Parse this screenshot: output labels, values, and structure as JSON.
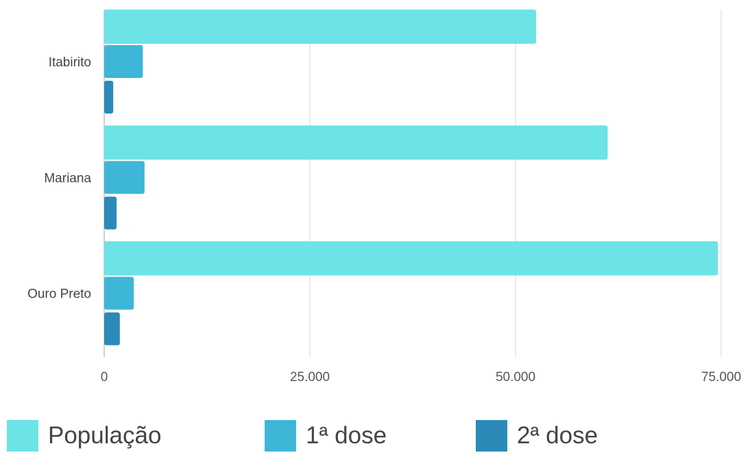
{
  "chart_data": {
    "type": "bar",
    "orientation": "horizontal",
    "categories": [
      "Itabirito",
      "Mariana",
      "Ouro Preto"
    ],
    "series": [
      {
        "name": "População",
        "color": "#6ce3e6",
        "values": [
          52500,
          61200,
          74600
        ]
      },
      {
        "name": "1ª dose",
        "color": "#3eb6d8",
        "values": [
          4700,
          4900,
          3600
        ]
      },
      {
        "name": "2ª dose",
        "color": "#2b8ab8",
        "values": [
          1100,
          1500,
          1900
        ]
      }
    ],
    "xlim": [
      0,
      75000
    ],
    "xticks": [
      0,
      25000,
      50000,
      75000
    ],
    "xtick_labels": [
      "0",
      "25.000",
      "50.000",
      "75.000"
    ],
    "grid": "vertical",
    "legend_placement": "bottom"
  }
}
